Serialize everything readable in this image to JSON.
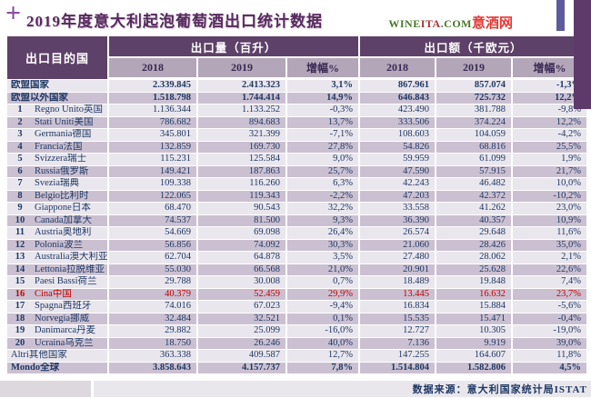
{
  "header": {
    "title": "2019年度意大利起泡葡萄酒出口统计数据",
    "logo": {
      "wine": "WINE",
      "ita": "ITA",
      "com": ".COM",
      "cn": "意酒网"
    }
  },
  "chart_data": {
    "type": "table",
    "title": "2019年度意大利起泡葡萄酒出口统计数据",
    "col_groups": [
      {
        "label": "出口目的国"
      },
      {
        "label": "出口量（百升）"
      },
      {
        "label": "出口额（千欧元）"
      }
    ],
    "sub_headers": [
      "2018",
      "2019",
      "增幅%",
      "2018",
      "2019",
      "增幅%"
    ],
    "rows": [
      {
        "rank": "",
        "name": "欧盟国家",
        "values": [
          "2.339.845",
          "2.413.323",
          "3,1%",
          "867.961",
          "857.074",
          "-1,3%"
        ],
        "bold": true,
        "red": false
      },
      {
        "rank": "",
        "name": "欧盟以外国家",
        "values": [
          "1.518.798",
          "1.744.414",
          "14,9%",
          "646.843",
          "725.732",
          "12,2%"
        ],
        "bold": true,
        "red": false
      },
      {
        "rank": "1",
        "name": "Regno Unito英国",
        "values": [
          "1.136.344",
          "1.133.252",
          "-0,3%",
          "423.490",
          "381.788",
          "-9,8%"
        ],
        "bold": false,
        "red": false
      },
      {
        "rank": "2",
        "name": "Stati Uniti美国",
        "values": [
          "786.682",
          "894.683",
          "13,7%",
          "333.506",
          "374.224",
          "12,2%"
        ],
        "bold": false,
        "red": false
      },
      {
        "rank": "3",
        "name": "Germania德国",
        "values": [
          "345.801",
          "321.399",
          "-7,1%",
          "108.603",
          "104.059",
          "-4,2%"
        ],
        "bold": false,
        "red": false
      },
      {
        "rank": "4",
        "name": "Francia法国",
        "values": [
          "132.859",
          "169.730",
          "27,8%",
          "54.826",
          "68.816",
          "25,5%"
        ],
        "bold": false,
        "red": false
      },
      {
        "rank": "5",
        "name": "Svizzera瑞士",
        "values": [
          "115.231",
          "125.584",
          "9,0%",
          "59.959",
          "61.099",
          "1,9%"
        ],
        "bold": false,
        "red": false
      },
      {
        "rank": "6",
        "name": "Russia俄罗斯",
        "values": [
          "149.421",
          "187.863",
          "25,7%",
          "47.590",
          "57.915",
          "21,7%"
        ],
        "bold": false,
        "red": false
      },
      {
        "rank": "7",
        "name": "Svezia瑞典",
        "values": [
          "109.338",
          "116.260",
          "6,3%",
          "42.243",
          "46.482",
          "10,0%"
        ],
        "bold": false,
        "red": false
      },
      {
        "rank": "8",
        "name": "Belgio比利时",
        "values": [
          "122.065",
          "119.343",
          "-2,2%",
          "47.203",
          "42.372",
          "-10,2%"
        ],
        "bold": false,
        "red": false
      },
      {
        "rank": "9",
        "name": "Giappone日本",
        "values": [
          "68.470",
          "90.543",
          "32,2%",
          "33.558",
          "41.262",
          "23,0%"
        ],
        "bold": false,
        "red": false
      },
      {
        "rank": "10",
        "name": "Canada加拿大",
        "values": [
          "74.537",
          "81.500",
          "9,3%",
          "36.390",
          "40.357",
          "10,9%"
        ],
        "bold": false,
        "red": false
      },
      {
        "rank": "11",
        "name": "Austria奥地利",
        "values": [
          "54.669",
          "69.098",
          "26,4%",
          "26.574",
          "29.648",
          "11,6%"
        ],
        "bold": false,
        "red": false
      },
      {
        "rank": "12",
        "name": "Polonia波兰",
        "values": [
          "56.856",
          "74.092",
          "30,3%",
          "21.060",
          "28.426",
          "35,0%"
        ],
        "bold": false,
        "red": false
      },
      {
        "rank": "13",
        "name": "Australia澳大利亚",
        "values": [
          "62.704",
          "64.878",
          "3,5%",
          "27.480",
          "28.062",
          "2,1%"
        ],
        "bold": false,
        "red": false
      },
      {
        "rank": "14",
        "name": "Lettonia拉脱维亚",
        "values": [
          "55.030",
          "66.568",
          "21,0%",
          "20.901",
          "25.628",
          "22,6%"
        ],
        "bold": false,
        "red": false
      },
      {
        "rank": "15",
        "name": "Paesi Bassi荷兰",
        "values": [
          "29.788",
          "30.008",
          "0,7%",
          "18.489",
          "19.848",
          "7,4%"
        ],
        "bold": false,
        "red": false
      },
      {
        "rank": "16",
        "name": "Cina中国",
        "values": [
          "40.379",
          "52.459",
          "29,9%",
          "13.445",
          "16.632",
          "23,7%"
        ],
        "bold": false,
        "red": true
      },
      {
        "rank": "17",
        "name": "Spagna西班牙",
        "values": [
          "74.016",
          "67.023",
          "-9,4%",
          "16.834",
          "15.884",
          "-5,6%"
        ],
        "bold": false,
        "red": false
      },
      {
        "rank": "18",
        "name": "Norvegia挪威",
        "values": [
          "32.484",
          "32.521",
          "0,1%",
          "15.535",
          "15.471",
          "-0,4%"
        ],
        "bold": false,
        "red": false
      },
      {
        "rank": "19",
        "name": "Danimarca丹麦",
        "values": [
          "29.882",
          "25.099",
          "-16,0%",
          "12.727",
          "10.305",
          "-19,0%"
        ],
        "bold": false,
        "red": false
      },
      {
        "rank": "20",
        "name": "Ucraina乌克兰",
        "values": [
          "18.750",
          "26.246",
          "40,0%",
          "7.136",
          "9.919",
          "39,0%"
        ],
        "bold": false,
        "red": false
      },
      {
        "rank": "",
        "name": "Altri其他国家",
        "values": [
          "363.338",
          "409.587",
          "12,7%",
          "147.255",
          "164.607",
          "11,8%"
        ],
        "bold": false,
        "red": false
      },
      {
        "rank": "",
        "name": "Mondo全球",
        "values": [
          "3.858.643",
          "4.157.737",
          "7,8%",
          "1.514.804",
          "1.582.806",
          "4,5%"
        ],
        "bold": true,
        "red": false
      }
    ],
    "source_note": "数据来源：意大利国家统计局ISTAT"
  },
  "colors": {
    "header_purple": "#5e4168",
    "subheader_mauve": "#b3a6b8",
    "row_light": "#e9e6ed",
    "row_dark": "#cbc0d1",
    "text_navy": "#1f3864",
    "title_purple": "#572a5e",
    "highlight_red": "#c00000",
    "bar_narrow": "#5c5b9e",
    "bar_wide": "#5e3a6b",
    "logo_green": "#4a7729",
    "logo_red": "#e53935"
  }
}
